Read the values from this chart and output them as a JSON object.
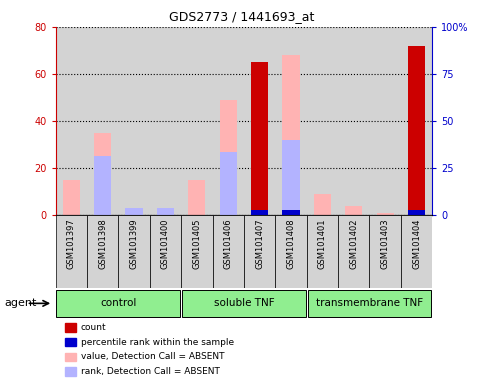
{
  "title": "GDS2773 / 1441693_at",
  "samples": [
    "GSM101397",
    "GSM101398",
    "GSM101399",
    "GSM101400",
    "GSM101405",
    "GSM101406",
    "GSM101407",
    "GSM101408",
    "GSM101401",
    "GSM101402",
    "GSM101403",
    "GSM101404"
  ],
  "groups": [
    {
      "label": "control",
      "start": 0,
      "end": 4
    },
    {
      "label": "soluble TNF",
      "start": 4,
      "end": 8
    },
    {
      "label": "transmembrane TNF",
      "start": 8,
      "end": 12
    }
  ],
  "count_values": [
    0,
    0,
    0,
    0,
    0,
    0,
    65,
    0,
    0,
    0,
    0,
    72
  ],
  "rank_values": [
    0,
    0,
    0,
    0,
    0,
    0,
    2,
    2,
    0,
    0,
    0,
    2
  ],
  "value_absent": [
    15,
    35,
    2,
    2,
    15,
    49,
    0,
    68,
    9,
    4,
    1,
    0
  ],
  "rank_absent": [
    0,
    25,
    3,
    3,
    0,
    27,
    0,
    32,
    0,
    0,
    0,
    0
  ],
  "ylim_left": [
    0,
    80
  ],
  "ylim_right": [
    0,
    100
  ],
  "yticks_left": [
    0,
    20,
    40,
    60,
    80
  ],
  "yticks_right": [
    0,
    25,
    50,
    75,
    100
  ],
  "ytick_labels_left": [
    "0",
    "20",
    "40",
    "60",
    "80"
  ],
  "ytick_labels_right": [
    "0",
    "25",
    "50",
    "75",
    "100%"
  ],
  "color_count": "#cc0000",
  "color_rank": "#0000cc",
  "color_value_absent": "#ffb3b3",
  "color_rank_absent": "#b3b3ff",
  "color_left_axis": "#cc0000",
  "color_right_axis": "#0000cc",
  "bg_plot": "#d3d3d3",
  "bg_xtick": "#d3d3d3",
  "bg_group": "#90ee90",
  "bar_width": 0.55,
  "legend_items": [
    [
      "#cc0000",
      "count"
    ],
    [
      "#0000cc",
      "percentile rank within the sample"
    ],
    [
      "#ffb3b3",
      "value, Detection Call = ABSENT"
    ],
    [
      "#b3b3ff",
      "rank, Detection Call = ABSENT"
    ]
  ]
}
